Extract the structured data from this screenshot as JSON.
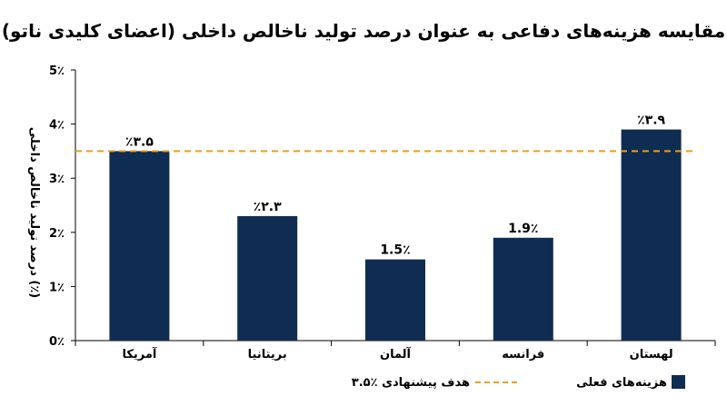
{
  "chart_data": {
    "type": "bar",
    "title": "مقایسه هزینه‌های دفاعی به عنوان درصد تولید ناخالص داخلی (اعضای کلیدی ناتو)",
    "ylabel": "درصد تولید ناخالص داخلی (٪)",
    "xlabel": "",
    "categories": [
      "آمریکا",
      "بریتانیا",
      "آلمان",
      "فرانسه",
      "لهستان"
    ],
    "series": [
      {
        "name": "هزینه‌های فعلی",
        "values": [
          3.5,
          2.3,
          1.5,
          1.9,
          3.9
        ],
        "color": "#0f2d52"
      }
    ],
    "data_labels": [
      "٪۳.۵",
      "٪۲.۳",
      "1.5٪",
      "1.9٪",
      "٪۳.۹"
    ],
    "ylim": [
      0,
      5
    ],
    "yticks": [
      0,
      1,
      2,
      3,
      4,
      5
    ],
    "ytick_labels": [
      "0٪",
      "1٪",
      "2٪",
      "3٪",
      "4٪",
      "5٪"
    ],
    "reference_line": {
      "name": "هدف پیشنهادی ٪۳.۵",
      "value": 3.5,
      "color": "#e8a020",
      "style": "dashed"
    },
    "legend_position": "bottom",
    "grid": false
  }
}
